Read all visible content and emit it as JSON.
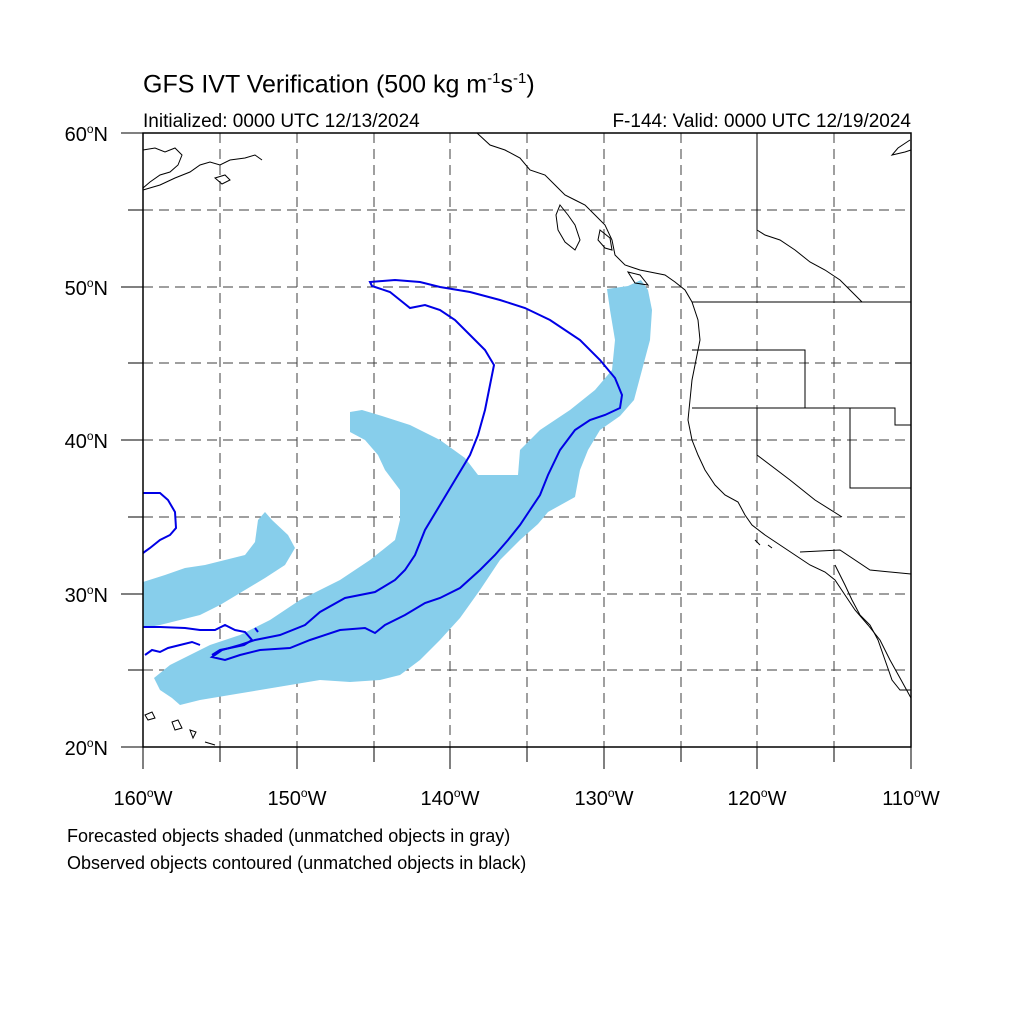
{
  "title": {
    "main": "GFS IVT Verification (500 kg m",
    "exp1": "-1",
    "mid": "s",
    "exp2": "-1",
    "end": ")"
  },
  "initialized": "Initialized: 0000 UTC 12/13/2024",
  "valid": "F-144: Valid: 0000 UTC 12/19/2024",
  "lat_labels": [
    {
      "num": "60",
      "hemi": "N"
    },
    {
      "num": "50",
      "hemi": "N"
    },
    {
      "num": "40",
      "hemi": "N"
    },
    {
      "num": "30",
      "hemi": "N"
    },
    {
      "num": "20",
      "hemi": "N"
    }
  ],
  "lon_labels": [
    {
      "num": "160",
      "hemi": "W"
    },
    {
      "num": "150",
      "hemi": "W"
    },
    {
      "num": "140",
      "hemi": "W"
    },
    {
      "num": "130",
      "hemi": "W"
    },
    {
      "num": "120",
      "hemi": "W"
    },
    {
      "num": "110",
      "hemi": "W"
    }
  ],
  "degree_symbol": "o",
  "captions": [
    "Forecasted objects shaded (unmatched objects in gray)",
    "Observed objects contoured (unmatched objects in black)"
  ],
  "map_extent": {
    "lon_min": -160,
    "lon_max": -110,
    "lat_min": 20,
    "lat_max": 60
  },
  "colors": {
    "forecast_fill": "#87ceeb",
    "observed_contour": "#0000e6",
    "coast": "#000000",
    "grid": "#000000"
  }
}
